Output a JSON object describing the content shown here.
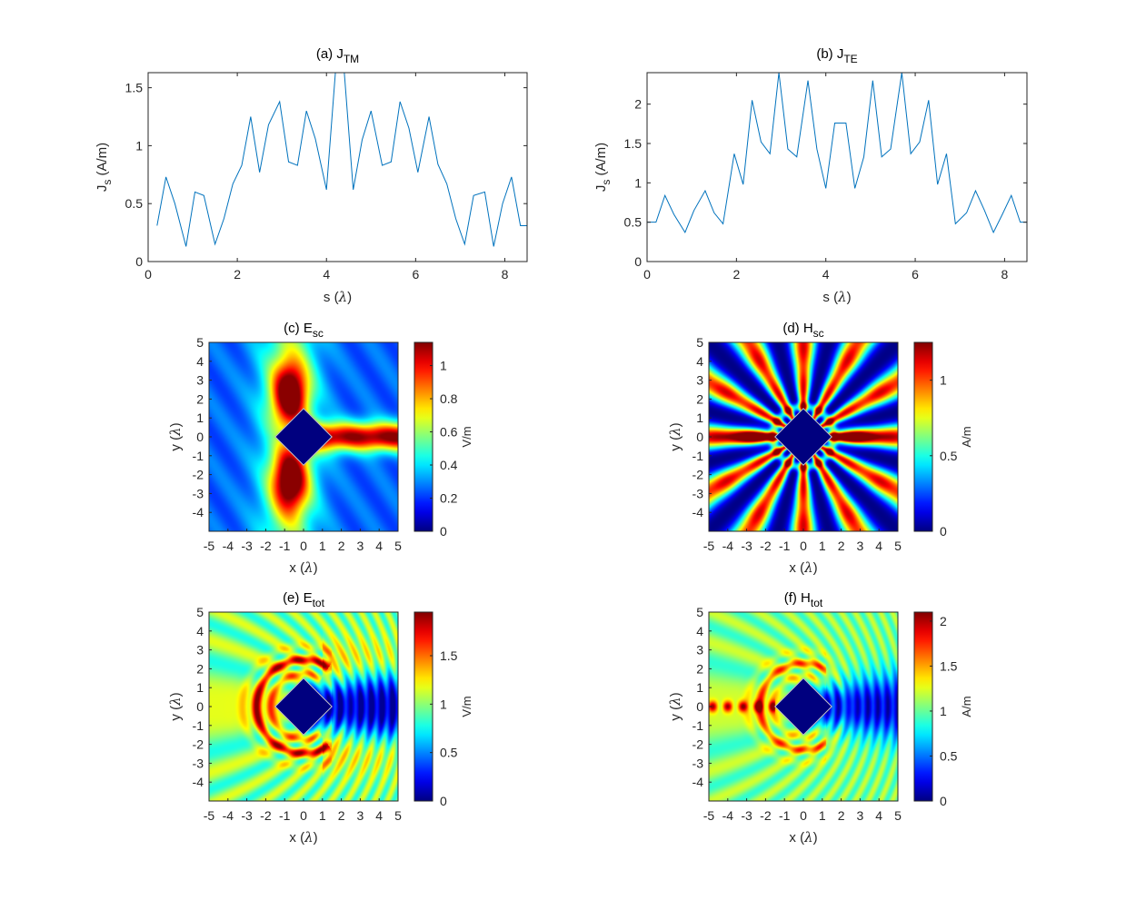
{
  "chart_data": [
    {
      "id": "a",
      "type": "line",
      "title": {
        "prefix": "(a) J",
        "sub": "TM"
      },
      "xlabel": {
        "text": "s (",
        "greek": "λ",
        "suffix": ")"
      },
      "ylabel": {
        "main": "J",
        "sub": "s",
        "rest": " (A/m)"
      },
      "xlim": [
        0,
        8.5
      ],
      "ylim": [
        0,
        1.63
      ],
      "xticks": [
        0,
        2,
        4,
        6,
        8
      ],
      "xtick_labels": [
        "0",
        "2",
        "4",
        "6",
        "8"
      ],
      "yticks": [
        0,
        0.5,
        1,
        1.5
      ],
      "ytick_labels": [
        "0",
        "0.5",
        "1",
        "1.5"
      ],
      "series": [
        {
          "name": "J_TM",
          "x": [
            0.2,
            0.4,
            0.6,
            0.85,
            1.05,
            1.25,
            1.5,
            1.7,
            1.9,
            2.1,
            2.3,
            2.5,
            2.7,
            2.95,
            3.15,
            3.35,
            3.55,
            3.75,
            4.0,
            4.2,
            4.4,
            4.6,
            4.8,
            5.0,
            5.25,
            5.45,
            5.65,
            5.85,
            6.05,
            6.3,
            6.5,
            6.7,
            6.9,
            7.1,
            7.3,
            7.55,
            7.75,
            7.95,
            8.15,
            8.35,
            8.5
          ],
          "values": [
            0.31,
            0.73,
            0.5,
            0.13,
            0.6,
            0.57,
            0.15,
            0.37,
            0.67,
            0.83,
            1.25,
            0.77,
            1.18,
            1.38,
            0.86,
            0.83,
            1.3,
            1.06,
            0.62,
            1.63,
            1.63,
            0.62,
            1.05,
            1.3,
            0.83,
            0.86,
            1.38,
            1.15,
            0.77,
            1.25,
            0.84,
            0.67,
            0.37,
            0.15,
            0.57,
            0.6,
            0.13,
            0.5,
            0.73,
            0.31,
            0.31
          ]
        }
      ]
    },
    {
      "id": "b",
      "type": "line",
      "title": {
        "prefix": "(b) J",
        "sub": "TE"
      },
      "xlabel": {
        "text": "s (",
        "greek": "λ",
        "suffix": ")"
      },
      "ylabel": {
        "main": "J",
        "sub": "s",
        "rest": " (A/m)"
      },
      "xlim": [
        0,
        8.5
      ],
      "ylim": [
        0,
        2.4
      ],
      "xticks": [
        0,
        2,
        4,
        6,
        8
      ],
      "xtick_labels": [
        "0",
        "2",
        "4",
        "6",
        "8"
      ],
      "yticks": [
        0,
        0.5,
        1,
        1.5,
        2
      ],
      "ytick_labels": [
        "0",
        "0.5",
        "1",
        "1.5",
        "2"
      ],
      "series": [
        {
          "name": "J_TE",
          "x": [
            0,
            0.2,
            0.4,
            0.6,
            0.85,
            1.05,
            1.3,
            1.5,
            1.7,
            1.95,
            2.15,
            2.35,
            2.55,
            2.75,
            2.95,
            3.15,
            3.35,
            3.6,
            3.8,
            4.0,
            4.2,
            4.45,
            4.65,
            4.85,
            5.05,
            5.25,
            5.45,
            5.7,
            5.9,
            6.1,
            6.3,
            6.5,
            6.7,
            6.9,
            7.15,
            7.35,
            7.55,
            7.75,
            7.95,
            8.15,
            8.35,
            8.5
          ],
          "values": [
            0.5,
            0.5,
            0.84,
            0.6,
            0.37,
            0.65,
            0.9,
            0.62,
            0.48,
            1.37,
            0.98,
            2.05,
            1.52,
            1.37,
            2.4,
            1.43,
            1.33,
            2.3,
            1.43,
            0.93,
            1.76,
            1.76,
            0.93,
            1.33,
            2.3,
            1.33,
            1.43,
            2.4,
            1.37,
            1.52,
            2.05,
            0.98,
            1.37,
            0.48,
            0.62,
            0.9,
            0.65,
            0.37,
            0.6,
            0.84,
            0.5,
            0.5
          ]
        }
      ]
    },
    {
      "id": "c",
      "type": "heatmap",
      "title": {
        "prefix": "(c) E",
        "sub": "sc"
      },
      "xlabel": {
        "text": "x (",
        "greek": "λ",
        "suffix": ")"
      },
      "ylabel": {
        "text": "y (",
        "greek": "λ",
        "suffix": ")"
      },
      "xlim": [
        -5,
        5
      ],
      "ylim": [
        -5,
        5
      ],
      "xticks": [
        -5,
        -4,
        -3,
        -2,
        -1,
        0,
        1,
        2,
        3,
        4,
        5
      ],
      "xtick_labels": [
        "-5",
        "-4",
        "-3",
        "-2",
        "-1",
        "0",
        "1",
        "2",
        "3",
        "4",
        "5"
      ],
      "yticks": [
        -4,
        -3,
        -2,
        -1,
        0,
        1,
        2,
        3,
        4,
        5
      ],
      "ytick_labels": [
        "-4",
        "-3",
        "-2",
        "-1",
        "0",
        "1",
        "2",
        "3",
        "4",
        "5"
      ],
      "colorbar": {
        "label": "V/m",
        "range": [
          0,
          1.14
        ],
        "ticks": [
          0,
          0.2,
          0.4,
          0.6,
          0.8,
          1
        ],
        "tick_labels": [
          "0",
          "0.2",
          "0.4",
          "0.6",
          "0.8",
          "1"
        ]
      },
      "colormap": "jet",
      "scatterer": "square rotated 45°, half-diagonal 1.5λ, centered at origin"
    },
    {
      "id": "d",
      "type": "heatmap",
      "title": {
        "prefix": "(d) H",
        "sub": "sc"
      },
      "xlabel": {
        "text": "x (",
        "greek": "λ",
        "suffix": ")"
      },
      "ylabel": {
        "text": "y (",
        "greek": "λ",
        "suffix": ")"
      },
      "xlim": [
        -5,
        5
      ],
      "ylim": [
        -5,
        5
      ],
      "xticks": [
        -5,
        -4,
        -3,
        -2,
        -1,
        0,
        1,
        2,
        3,
        4,
        5
      ],
      "xtick_labels": [
        "-5",
        "-4",
        "-3",
        "-2",
        "-1",
        "0",
        "1",
        "2",
        "3",
        "4",
        "5"
      ],
      "yticks": [
        -4,
        -3,
        -2,
        -1,
        0,
        1,
        2,
        3,
        4,
        5
      ],
      "ytick_labels": [
        "-4",
        "-3",
        "-2",
        "-1",
        "0",
        "1",
        "2",
        "3",
        "4",
        "5"
      ],
      "colorbar": {
        "label": "A/m",
        "range": [
          0,
          1.25
        ],
        "ticks": [
          0,
          0.5,
          1
        ],
        "tick_labels": [
          "0",
          "0.5",
          "1"
        ]
      },
      "colormap": "jet",
      "scatterer": "square rotated 45°, half-diagonal 1.5λ, centered at origin"
    },
    {
      "id": "e",
      "type": "heatmap",
      "title": {
        "prefix": "(e) E",
        "sub": "tot"
      },
      "xlabel": {
        "text": "x (",
        "greek": "λ",
        "suffix": ")"
      },
      "ylabel": {
        "text": "y (",
        "greek": "λ",
        "suffix": ")"
      },
      "xlim": [
        -5,
        5
      ],
      "ylim": [
        -5,
        5
      ],
      "xticks": [
        -5,
        -4,
        -3,
        -2,
        -1,
        0,
        1,
        2,
        3,
        4,
        5
      ],
      "xtick_labels": [
        "-5",
        "-4",
        "-3",
        "-2",
        "-1",
        "0",
        "1",
        "2",
        "3",
        "4",
        "5"
      ],
      "yticks": [
        -4,
        -3,
        -2,
        -1,
        0,
        1,
        2,
        3,
        4,
        5
      ],
      "ytick_labels": [
        "-4",
        "-3",
        "-2",
        "-1",
        "0",
        "1",
        "2",
        "3",
        "4",
        "5"
      ],
      "colorbar": {
        "label": "V/m",
        "range": [
          0,
          1.95
        ],
        "ticks": [
          0,
          0.5,
          1,
          1.5
        ],
        "tick_labels": [
          "0",
          "0.5",
          "1",
          "1.5"
        ]
      },
      "colormap": "jet",
      "scatterer": "square rotated 45°, half-diagonal 1.5λ, centered at origin"
    },
    {
      "id": "f",
      "type": "heatmap",
      "title": {
        "prefix": "(f) H",
        "sub": "tot"
      },
      "xlabel": {
        "text": "x (",
        "greek": "λ",
        "suffix": ")"
      },
      "ylabel": {
        "text": "y (",
        "greek": "λ",
        "suffix": ")"
      },
      "xlim": [
        -5,
        5
      ],
      "ylim": [
        -5,
        5
      ],
      "xticks": [
        -5,
        -4,
        -3,
        -2,
        -1,
        0,
        1,
        2,
        3,
        4,
        5
      ],
      "xtick_labels": [
        "-5",
        "-4",
        "-3",
        "-2",
        "-1",
        "0",
        "1",
        "2",
        "3",
        "4",
        "5"
      ],
      "yticks": [
        -4,
        -3,
        -2,
        -1,
        0,
        1,
        2,
        3,
        4,
        5
      ],
      "ytick_labels": [
        "-4",
        "-3",
        "-2",
        "-1",
        "0",
        "1",
        "2",
        "3",
        "4",
        "5"
      ],
      "colorbar": {
        "label": "A/m",
        "range": [
          0,
          2.1
        ],
        "ticks": [
          0,
          0.5,
          1,
          1.5,
          2
        ],
        "tick_labels": [
          "0",
          "0.5",
          "1",
          "1.5",
          "2"
        ]
      },
      "colormap": "jet",
      "scatterer": "square rotated 45°, half-diagonal 1.5λ, centered at origin"
    }
  ],
  "colors": {
    "line": "#0072BD",
    "axis": "#262626",
    "background": "#ffffff"
  }
}
